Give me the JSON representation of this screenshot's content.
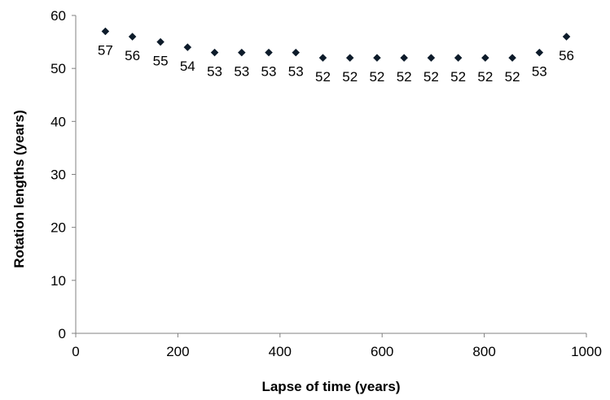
{
  "chart_data": {
    "type": "scatter",
    "title": "",
    "xlabel": "Lapse of time (years)",
    "ylabel": "Rotation lengths (years)",
    "xlim": [
      0,
      1000
    ],
    "ylim": [
      0,
      60
    ],
    "xticks": [
      0,
      200,
      400,
      600,
      800,
      1000
    ],
    "yticks": [
      0,
      10,
      20,
      30,
      40,
      50,
      60
    ],
    "grid": false,
    "legend": "none",
    "marker": "diamond",
    "marker_color": "#0d1b2a",
    "series": [
      {
        "points": [
          {
            "x": 58,
            "y": 57,
            "label": "57"
          },
          {
            "x": 111,
            "y": 56,
            "label": "56"
          },
          {
            "x": 166,
            "y": 55,
            "label": "55"
          },
          {
            "x": 219,
            "y": 54,
            "label": "54"
          },
          {
            "x": 272,
            "y": 53,
            "label": "53"
          },
          {
            "x": 325,
            "y": 53,
            "label": "53"
          },
          {
            "x": 378,
            "y": 53,
            "label": "53"
          },
          {
            "x": 431,
            "y": 53,
            "label": "53"
          },
          {
            "x": 484,
            "y": 52,
            "label": "52"
          },
          {
            "x": 537,
            "y": 52,
            "label": "52"
          },
          {
            "x": 590,
            "y": 52,
            "label": "52"
          },
          {
            "x": 643,
            "y": 52,
            "label": "52"
          },
          {
            "x": 696,
            "y": 52,
            "label": "52"
          },
          {
            "x": 749,
            "y": 52,
            "label": "52"
          },
          {
            "x": 802,
            "y": 52,
            "label": "52"
          },
          {
            "x": 855,
            "y": 52,
            "label": "52"
          },
          {
            "x": 908,
            "y": 53,
            "label": "53"
          },
          {
            "x": 961,
            "y": 56,
            "label": "56"
          }
        ]
      }
    ]
  }
}
